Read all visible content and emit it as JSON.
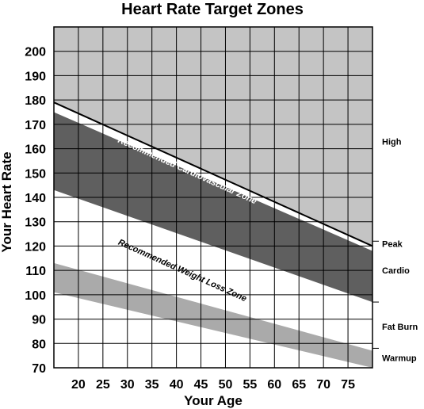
{
  "chart_data": {
    "type": "area",
    "title": "Heart Rate Target Zones",
    "xlabel": "Your Age",
    "ylabel": "Your Heart Rate",
    "xlim": [
      15,
      80
    ],
    "ylim": [
      70,
      210
    ],
    "x_ticks": [
      20,
      25,
      30,
      35,
      40,
      45,
      50,
      55,
      60,
      65,
      70,
      75
    ],
    "y_ticks": [
      70,
      80,
      90,
      100,
      110,
      120,
      130,
      140,
      150,
      160,
      170,
      180,
      190,
      200
    ],
    "grid": true,
    "series": [
      {
        "name": "Peak",
        "x": [
          15,
          80
        ],
        "y": [
          179,
          120
        ]
      },
      {
        "name": "Cardio",
        "x": [
          15,
          80
        ],
        "y_upper": [
          175,
          118
        ],
        "y_lower": [
          143,
          97
        ],
        "color": "#5f5f5f"
      },
      {
        "name": "Fat Burn",
        "x": [
          15,
          80
        ],
        "y_upper": [
          113,
          77
        ],
        "y_lower": [
          101,
          70
        ],
        "color": "#aaaaaa"
      }
    ],
    "zone_labels": [
      {
        "text": "High",
        "y": 163
      },
      {
        "text": "Peak",
        "y": 121
      },
      {
        "text": "Cardio",
        "y": 110
      },
      {
        "text": "Fat Burn",
        "y": 87
      },
      {
        "text": "Warmup",
        "y": 74
      }
    ],
    "annotations": [
      {
        "text": "Recommended Cardiovascular Zone",
        "x": 42,
        "y": 150
      },
      {
        "text": "Recommended Weight Loss Zone",
        "x": 41,
        "y": 109
      }
    ],
    "colors": {
      "high_zone": "#c4c4c4",
      "cardio_zone": "#5f5f5f",
      "fatburn_zone": "#aaaaaa",
      "grid": "#000000"
    }
  }
}
